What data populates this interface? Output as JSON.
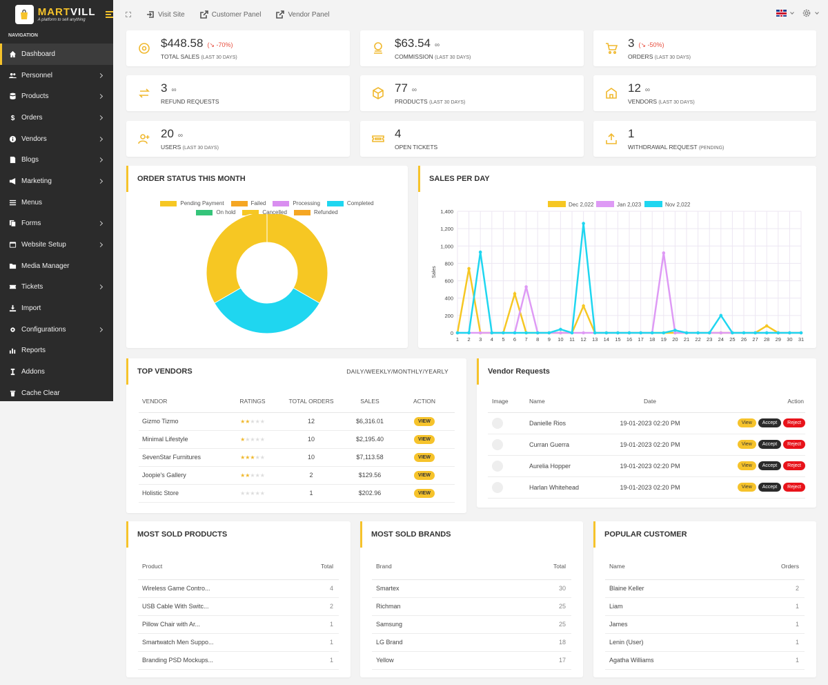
{
  "brand": {
    "name_a": "MART",
    "name_b": "VILL",
    "tagline": "A platform to sell anything"
  },
  "nav": {
    "title": "NAVIGATION",
    "items": [
      {
        "label": "Dashboard",
        "icon": "home-icon",
        "chev": false,
        "active": true
      },
      {
        "label": "Personnel",
        "icon": "users-icon",
        "chev": true
      },
      {
        "label": "Products",
        "icon": "database-icon",
        "chev": true
      },
      {
        "label": "Orders",
        "icon": "dollar-icon",
        "chev": true
      },
      {
        "label": "Vendors",
        "icon": "info-icon",
        "chev": true
      },
      {
        "label": "Blogs",
        "icon": "blog-icon",
        "chev": true
      },
      {
        "label": "Marketing",
        "icon": "megaphone-icon",
        "chev": true
      },
      {
        "label": "Menus",
        "icon": "menu-icon",
        "chev": false
      },
      {
        "label": "Forms",
        "icon": "forms-icon",
        "chev": true
      },
      {
        "label": "Website Setup",
        "icon": "website-icon",
        "chev": true
      },
      {
        "label": "Media Manager",
        "icon": "folder-icon",
        "chev": false
      },
      {
        "label": "Tickets",
        "icon": "ticket-icon",
        "chev": true
      },
      {
        "label": "Import",
        "icon": "import-icon",
        "chev": false
      },
      {
        "label": "Configurations",
        "icon": "gear-icon",
        "chev": true
      },
      {
        "label": "Reports",
        "icon": "chart-icon",
        "chev": false
      },
      {
        "label": "Addons",
        "icon": "addon-icon",
        "chev": false
      },
      {
        "label": "Cache Clear",
        "icon": "trash-icon",
        "chev": false
      }
    ]
  },
  "top": {
    "visit": "Visit Site",
    "customer": "Customer Panel",
    "vendor": "Vendor Panel"
  },
  "stats": [
    {
      "value": "$448.58",
      "change": "(↘ -70%)",
      "label": "TOTAL SALES",
      "sub": "(LAST 30 DAYS)",
      "icon": "dollar-circle-icon"
    },
    {
      "value": "$63.54",
      "change": "∞",
      "label": "COMMISSION",
      "sub": "(LAST 30 DAYS)",
      "icon": "coins-icon",
      "inf": true
    },
    {
      "value": "3",
      "change": "(↘ -50%)",
      "label": "ORDERS",
      "sub": "(LAST 30 DAYS)",
      "icon": "cart-icon"
    },
    {
      "value": "3",
      "change": "∞",
      "label": "REFUND REQUESTS",
      "sub": "",
      "icon": "refund-icon",
      "inf": true
    },
    {
      "value": "77",
      "change": "∞",
      "label": "PRODUCTS",
      "sub": "(LAST 30 DAYS)",
      "icon": "box-icon",
      "inf": true
    },
    {
      "value": "12",
      "change": "∞",
      "label": "VENDORS",
      "sub": "(LAST 30 DAYS)",
      "icon": "store-icon",
      "inf": true
    },
    {
      "value": "20",
      "change": "∞",
      "label": "USERS",
      "sub": "(LAST 30 DAYS)",
      "icon": "user-add-icon",
      "inf": true
    },
    {
      "value": "4",
      "change": "",
      "label": "OPEN TICKETS",
      "sub": "",
      "icon": "ticket-icon"
    },
    {
      "value": "1",
      "change": "",
      "label": "WITHDRAWAL REQUEST",
      "sub": "(PENDING)",
      "icon": "upload-icon"
    }
  ],
  "order_status": {
    "title": "ORDER STATUS THIS MONTH"
  },
  "sales_day": {
    "title": "SALES PER DAY"
  },
  "chart_data": [
    {
      "type": "pie",
      "title": "ORDER STATUS THIS MONTH",
      "labels": [
        "Pending Payment",
        "Failed",
        "Processing",
        "Completed",
        "On hold",
        "Cancelled",
        "Refunded"
      ],
      "colors": [
        "#f6c723",
        "#f5a623",
        "#d98ef0",
        "#1fd6f0",
        "#35c47a",
        "#f6c723",
        "#f5a623"
      ],
      "values": [
        1,
        0,
        0,
        1,
        0,
        1,
        0
      ],
      "donut": true
    },
    {
      "type": "line",
      "title": "SALES PER DAY",
      "ylabel": "Sales",
      "ylim": [
        0,
        1400
      ],
      "yticks": [
        0,
        200,
        400,
        600,
        800,
        1000,
        1200,
        1400
      ],
      "x": [
        1,
        2,
        3,
        4,
        5,
        6,
        7,
        8,
        9,
        10,
        11,
        12,
        13,
        14,
        15,
        16,
        17,
        18,
        19,
        20,
        21,
        22,
        23,
        24,
        25,
        26,
        27,
        28,
        29,
        30,
        31
      ],
      "legend": "top",
      "grid": true,
      "series": [
        {
          "name": "Dec 2,022",
          "color": "#f6c723",
          "values": [
            0,
            740,
            0,
            0,
            0,
            450,
            0,
            0,
            0,
            0,
            0,
            310,
            0,
            0,
            0,
            0,
            0,
            0,
            0,
            0,
            0,
            0,
            0,
            0,
            0,
            0,
            0,
            80,
            0,
            0,
            0
          ]
        },
        {
          "name": "Jan 2,023",
          "color": "#de9af5",
          "values": [
            0,
            0,
            0,
            0,
            0,
            0,
            530,
            0,
            0,
            0,
            0,
            0,
            0,
            0,
            0,
            0,
            0,
            0,
            920,
            0,
            0,
            0,
            0,
            0,
            0,
            0,
            0,
            0,
            0,
            0,
            0
          ]
        },
        {
          "name": "Nov 2,022",
          "color": "#1fd6f0",
          "values": [
            0,
            0,
            930,
            0,
            0,
            0,
            0,
            0,
            0,
            40,
            0,
            1260,
            0,
            0,
            0,
            0,
            0,
            0,
            0,
            30,
            0,
            0,
            0,
            200,
            0,
            0,
            0,
            0,
            0,
            0,
            0
          ]
        }
      ]
    }
  ],
  "top_vendors": {
    "title": "TOP VENDORS",
    "period": "DAILY/WEEKLY/MONTHLY/YEARLY",
    "cols": [
      "VENDOR",
      "RATINGS",
      "TOTAL ORDERS",
      "SALES",
      "ACTION"
    ],
    "action": "VIEW",
    "rows": [
      {
        "name": "Gizmo Tizmo",
        "rating": 2,
        "orders": "12",
        "sales": "$6,316.01"
      },
      {
        "name": "Minimal Lifestyle",
        "rating": 1,
        "orders": "10",
        "sales": "$2,195.40"
      },
      {
        "name": "SevenStar Furnitures",
        "rating": 3,
        "orders": "10",
        "sales": "$7,113.58"
      },
      {
        "name": "Joopie's Gallery",
        "rating": 2,
        "orders": "2",
        "sales": "$129.56"
      },
      {
        "name": "Holistic Store",
        "rating": 0,
        "orders": "1",
        "sales": "$202.96"
      }
    ]
  },
  "vendor_requests": {
    "title": "Vendor Requests",
    "cols": [
      "Image",
      "Name",
      "Date",
      "Action"
    ],
    "view": "View",
    "accept": "Accept",
    "reject": "Reject",
    "rows": [
      {
        "name": "Danielle Rios",
        "date": "19-01-2023 02:20 PM"
      },
      {
        "name": "Curran Guerra",
        "date": "19-01-2023 02:20 PM"
      },
      {
        "name": "Aurelia Hopper",
        "date": "19-01-2023 02:20 PM"
      },
      {
        "name": "Harlan Whitehead",
        "date": "19-01-2023 02:20 PM"
      }
    ]
  },
  "most_sold_products": {
    "title": "MOST SOLD PRODUCTS",
    "cols": [
      "Product",
      "Total"
    ],
    "rows": [
      {
        "a": "Wireless Game Contro...",
        "b": "4"
      },
      {
        "a": "USB Cable With Switc...",
        "b": "2"
      },
      {
        "a": "Pillow Chair with Ar...",
        "b": "1"
      },
      {
        "a": "Smartwatch Men Suppo...",
        "b": "1"
      },
      {
        "a": "Branding PSD Mockups...",
        "b": "1"
      }
    ]
  },
  "most_sold_brands": {
    "title": "MOST SOLD BRANDS",
    "cols": [
      "Brand",
      "Total"
    ],
    "rows": [
      {
        "a": "Smartex",
        "b": "30"
      },
      {
        "a": "Richman",
        "b": "25"
      },
      {
        "a": "Samsung",
        "b": "25"
      },
      {
        "a": "LG Brand",
        "b": "18"
      },
      {
        "a": "Yellow",
        "b": "17"
      }
    ]
  },
  "popular_customer": {
    "title": "POPULAR CUSTOMER",
    "cols": [
      "Name",
      "Orders"
    ],
    "rows": [
      {
        "a": "Blaine Keller",
        "b": "2"
      },
      {
        "a": "Liam",
        "b": "1"
      },
      {
        "a": "James",
        "b": "1"
      },
      {
        "a": "Lenin (User)",
        "b": "1"
      },
      {
        "a": "Agatha Williams",
        "b": "1"
      }
    ]
  }
}
